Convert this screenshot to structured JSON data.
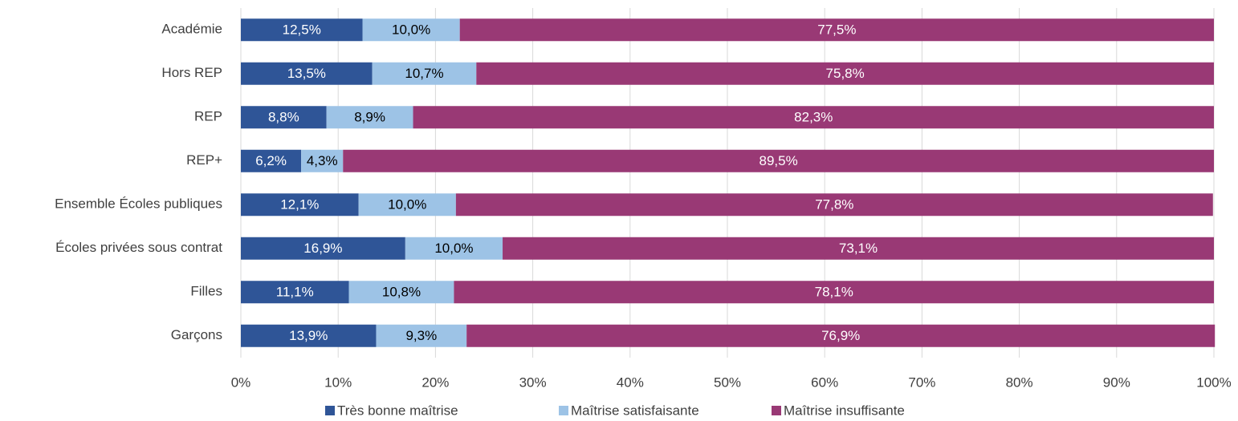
{
  "chart_data": {
    "type": "stacked_bar_horizontal",
    "categories": [
      "Académie",
      "Hors REP",
      "REP",
      "REP+",
      "Ensemble Écoles publiques",
      "Écoles privées sous contrat",
      "Filles",
      "Garçons"
    ],
    "series": [
      {
        "name": "Très bonne maîtrise",
        "color": "#2f5597",
        "values": [
          12.5,
          13.5,
          8.8,
          6.2,
          12.1,
          16.9,
          11.1,
          13.9
        ],
        "value_labels": [
          "12,5%",
          "13,5%",
          "8,8%",
          "6,2%",
          "12,1%",
          "16,9%",
          "11,1%",
          "13,9%"
        ]
      },
      {
        "name": "Maîtrise satisfaisante",
        "color": "#9dc3e6",
        "values": [
          10.0,
          10.7,
          8.9,
          4.3,
          10.0,
          10.0,
          10.8,
          9.3
        ],
        "value_labels": [
          "10,0%",
          "10,7%",
          "8,9%",
          "4,3%",
          "10,0%",
          "10,0%",
          "10,8%",
          "9,3%"
        ]
      },
      {
        "name": "Maîtrise insuffisante",
        "color": "#993975",
        "values": [
          77.5,
          75.8,
          82.3,
          89.5,
          77.8,
          73.1,
          78.1,
          76.9
        ],
        "value_labels": [
          "77,5%",
          "75,8%",
          "82,3%",
          "89,5%",
          "77,8%",
          "73,1%",
          "78,1%",
          "76,9%"
        ]
      }
    ],
    "xlim": [
      0,
      100
    ],
    "xticks": [
      {
        "value": 0,
        "label": "0%"
      },
      {
        "value": 10,
        "label": "10%"
      },
      {
        "value": 20,
        "label": "20%"
      },
      {
        "value": 30,
        "label": "30%"
      },
      {
        "value": 40,
        "label": "40%"
      },
      {
        "value": 50,
        "label": "50%"
      },
      {
        "value": 60,
        "label": "60%"
      },
      {
        "value": 70,
        "label": "70%"
      },
      {
        "value": 80,
        "label": "80%"
      },
      {
        "value": 90,
        "label": "90%"
      },
      {
        "value": 100,
        "label": "100%"
      }
    ],
    "grid": true,
    "legend": "bottom"
  }
}
